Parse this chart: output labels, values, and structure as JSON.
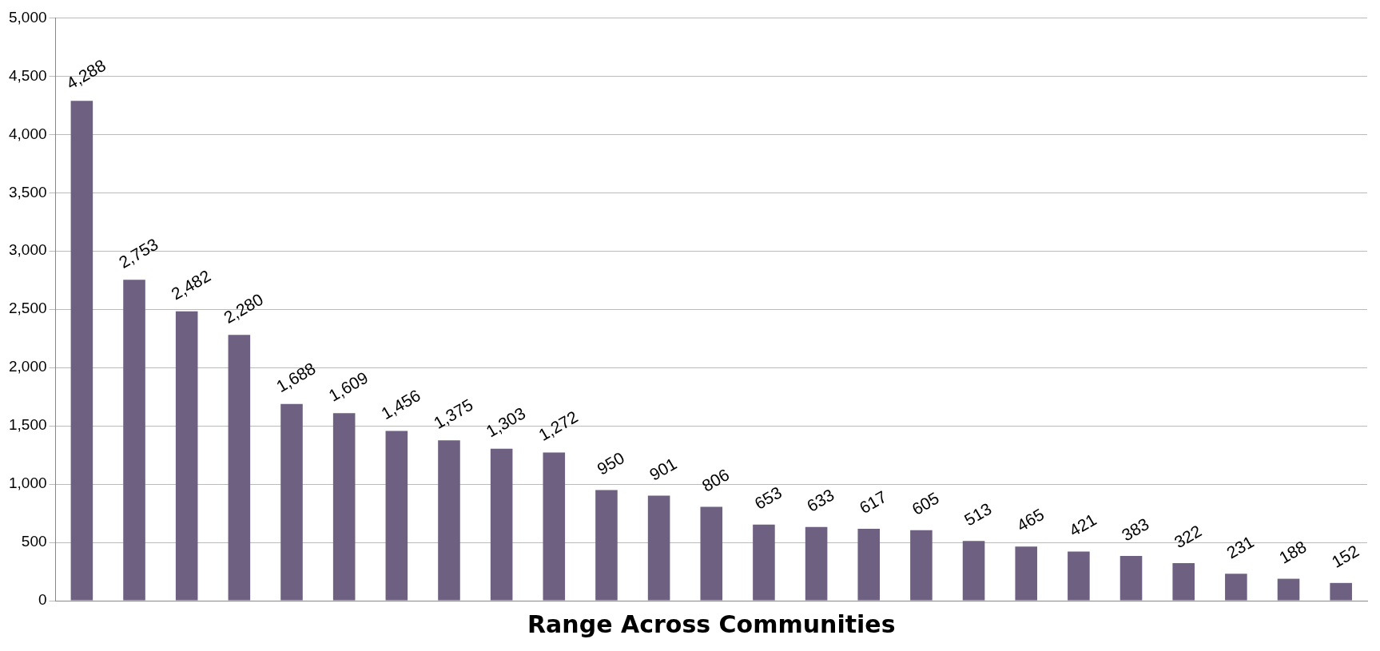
{
  "chart_data": {
    "type": "bar",
    "xlabel": "Range Across Communities",
    "categories": [
      null,
      null,
      null,
      null,
      null,
      null,
      null,
      null,
      null,
      null,
      null,
      null,
      null,
      null,
      null,
      null,
      null,
      null,
      null,
      null,
      null,
      null,
      null,
      null,
      null
    ],
    "values": [
      4288,
      2753,
      2482,
      2280,
      1688,
      1609,
      1456,
      1375,
      1303,
      1272,
      950,
      901,
      806,
      653,
      633,
      617,
      605,
      513,
      465,
      421,
      383,
      322,
      231,
      188,
      152
    ],
    "value_labels": [
      "4,288",
      "2,753",
      "2,482",
      "2,280",
      "1,688",
      "1,609",
      "1,456",
      "1,375",
      "1,303",
      "1,272",
      "950",
      "901",
      "806",
      "653",
      "633",
      "617",
      "605",
      "513",
      "465",
      "421",
      "383",
      "322",
      "231",
      "188",
      "152"
    ],
    "color": "#6e6080",
    "ylim": [
      0,
      5000
    ],
    "yticks": [
      0,
      500,
      {
        "value": 1000,
        "label": "1,000"
      },
      {
        "value": 1500,
        "label": "1,500"
      },
      {
        "value": 2000,
        "label": "2,000"
      },
      {
        "value": 2500,
        "label": "2,500"
      },
      {
        "value": 3000,
        "label": "3,000"
      },
      {
        "value": 3500,
        "label": "3,500"
      },
      {
        "value": 4000,
        "label": "4,000"
      },
      {
        "value": 4500,
        "label": "4,500"
      },
      {
        "value": 5000,
        "label": "5,000"
      }
    ],
    "grid": "y",
    "legend": false,
    "tick_labels": "y"
  }
}
